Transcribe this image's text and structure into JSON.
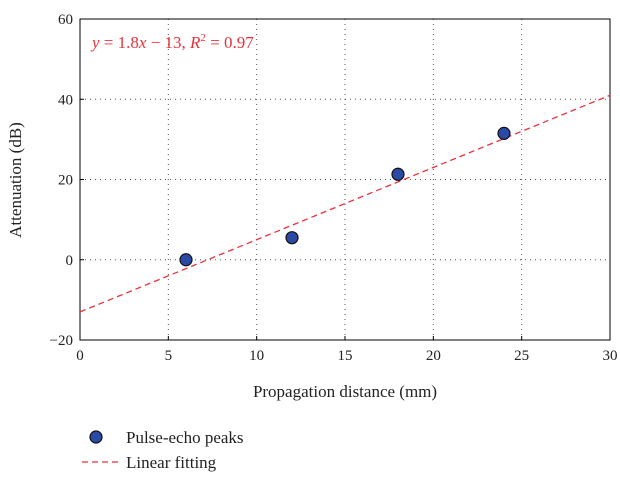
{
  "chart_data": {
    "type": "scatter",
    "xlabel": "Propagation distance (mm)",
    "ylabel": "Attenuation (dB)",
    "xlim": [
      0,
      30
    ],
    "ylim": [
      -20,
      60
    ],
    "xticks": [
      0,
      5,
      10,
      15,
      20,
      25,
      30
    ],
    "yticks": [
      -20,
      0,
      20,
      40,
      60
    ],
    "grid": true,
    "series": [
      {
        "name": "Pulse-echo peaks",
        "type": "scatter",
        "color": "#2b4aa6",
        "x": [
          6,
          12,
          18,
          24
        ],
        "y": [
          0,
          5.5,
          21.3,
          31.5
        ]
      },
      {
        "name": "Linear fitting",
        "type": "line",
        "style": "dashed",
        "color": "#e8323c",
        "slope": 1.8,
        "intercept": -13,
        "x": [
          0,
          30
        ],
        "y": [
          -13,
          41
        ]
      }
    ],
    "annotation": {
      "y_part": "y",
      "eq_part": " = 1.8",
      "x_part": "x",
      "mid_part": " − 13, ",
      "r_part": "R",
      "sup_part": "2",
      "tail_part": " = 0.97",
      "color": "#e8323c"
    },
    "legend_position": "below"
  }
}
